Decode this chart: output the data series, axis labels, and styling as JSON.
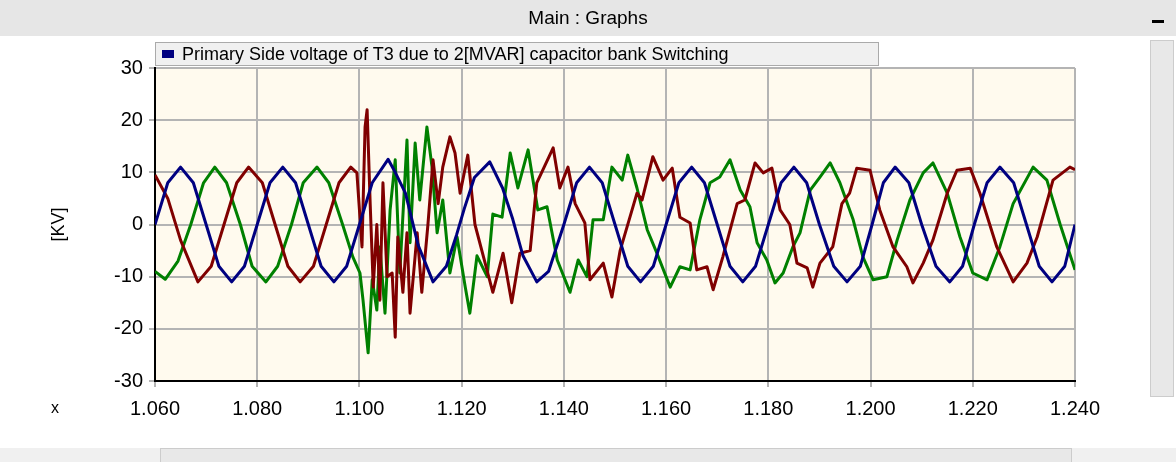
{
  "chart_data": {
    "type": "line",
    "title": "Main : Graphs",
    "xlabel": "x",
    "ylabel": "[KV]",
    "legend": "top",
    "grid": true,
    "xlim": [
      1.06,
      1.24
    ],
    "xticks": [
      {
        "value": 1.06,
        "label": "1.060"
      },
      {
        "value": 1.08,
        "label": "1.080"
      },
      {
        "value": 1.1,
        "label": "1.100"
      },
      {
        "value": 1.12,
        "label": "1.120"
      },
      {
        "value": 1.14,
        "label": "1.140"
      },
      {
        "value": 1.16,
        "label": "1.160"
      },
      {
        "value": 1.18,
        "label": "1.180"
      },
      {
        "value": 1.2,
        "label": "1.200"
      },
      {
        "value": 1.22,
        "label": "1.220"
      },
      {
        "value": 1.24,
        "label": "1.240"
      }
    ],
    "ylim": [
      -30,
      30
    ],
    "yticks": [
      -30,
      -20,
      -10,
      0,
      10,
      20,
      30
    ],
    "series": [
      {
        "name": "Primary Side voltage of T3 due to 2[MVAR] capacitor bank Switching",
        "color": "#000080",
        "x": [
          1.06,
          1.0625,
          1.065,
          1.0675,
          1.07,
          1.0725,
          1.075,
          1.0775,
          1.08,
          1.0825,
          1.085,
          1.0875,
          1.09,
          1.0925,
          1.095,
          1.0975,
          1.1,
          1.1025,
          1.1056,
          1.107,
          1.109,
          1.1115,
          1.1144,
          1.117,
          1.119,
          1.1205,
          1.1225,
          1.1255,
          1.128,
          1.13,
          1.132,
          1.1347,
          1.137,
          1.14,
          1.1425,
          1.145,
          1.1475,
          1.15,
          1.1525,
          1.155,
          1.1575,
          1.16,
          1.1625,
          1.165,
          1.1675,
          1.17,
          1.1725,
          1.175,
          1.1775,
          1.18,
          1.1825,
          1.185,
          1.1875,
          1.19,
          1.1928,
          1.1954,
          1.198,
          1.2003,
          1.2025,
          1.2048,
          1.2075,
          1.21,
          1.2128,
          1.2155,
          1.218,
          1.2203,
          1.2228,
          1.2253,
          1.228,
          1.2305,
          1.233,
          1.2355,
          1.238,
          1.24
        ],
        "values": [
          0,
          8,
          11,
          8,
          0,
          -8,
          -11,
          -8,
          0,
          8,
          11,
          8,
          0,
          -8,
          -11,
          -8,
          0,
          8,
          12.5,
          10,
          6,
          -4,
          -11,
          -8,
          -2,
          3,
          9,
          12,
          7,
          1,
          -6,
          -11,
          -9,
          0,
          8,
          11,
          8,
          0,
          -8,
          -11,
          -8,
          0,
          8,
          11,
          8,
          0,
          -8,
          -11,
          -8,
          0,
          8,
          11,
          8,
          0,
          -8,
          -11,
          -8,
          0,
          8,
          11,
          8,
          0,
          -8,
          -11,
          -8,
          0,
          8,
          11,
          8,
          0,
          -8,
          -11,
          -8,
          0
        ]
      },
      {
        "color": "#800000",
        "x": [
          1.06,
          1.0625,
          1.065,
          1.0684,
          1.071,
          1.0735,
          1.076,
          1.0783,
          1.081,
          1.0835,
          1.086,
          1.0884,
          1.091,
          1.0935,
          1.096,
          1.0983,
          1.0995,
          1.1005,
          1.1011,
          1.1015,
          1.1021,
          1.1027,
          1.1034,
          1.104,
          1.1046,
          1.1054,
          1.1064,
          1.107,
          1.1075,
          1.1085,
          1.1093,
          1.1099,
          1.1113,
          1.1122,
          1.1134,
          1.1144,
          1.1154,
          1.1163,
          1.1177,
          1.1187,
          1.1197,
          1.1212,
          1.1226,
          1.1261,
          1.1281,
          1.1298,
          1.1314,
          1.1334,
          1.1347,
          1.1379,
          1.1392,
          1.1408,
          1.1422,
          1.1441,
          1.1451,
          1.1477,
          1.1494,
          1.151,
          1.1543,
          1.1553,
          1.1574,
          1.1594,
          1.1612,
          1.1627,
          1.1647,
          1.166,
          1.168,
          1.1692,
          1.1711,
          1.1739,
          1.1754,
          1.1774,
          1.179,
          1.1807,
          1.1823,
          1.1842,
          1.1856,
          1.1876,
          1.1887,
          1.1901,
          1.1926,
          1.1944,
          1.1959,
          1.1973,
          1.1999,
          1.2018,
          1.2044,
          1.2071,
          1.2083,
          1.2103,
          1.2122,
          1.215,
          1.2169,
          1.2195,
          1.2214,
          1.2247,
          1.2279,
          1.2306,
          1.2326,
          1.2357,
          1.239,
          1.24
        ],
        "values": [
          9.5,
          5,
          -3,
          -11,
          -8,
          0,
          8,
          11,
          8,
          0,
          -8,
          -11,
          -8,
          0,
          8,
          11,
          9.9,
          -4.3,
          18.7,
          22,
          4,
          -12,
          0,
          -14.5,
          8,
          -10,
          -9.3,
          -21.6,
          -2.4,
          -13,
          -1.6,
          -17,
          -1.6,
          -13,
          0,
          12.4,
          4,
          11,
          16.8,
          13.7,
          6,
          13.3,
          0,
          -13,
          -5.5,
          -15,
          -5.5,
          -5,
          8,
          14.7,
          7,
          11,
          4,
          0.3,
          -10.6,
          -7.4,
          -13.9,
          -5,
          6,
          4.7,
          13,
          8.5,
          10.8,
          1.4,
          0.3,
          -8.7,
          -8.1,
          -12.5,
          -6.2,
          4,
          4.7,
          11.8,
          9.9,
          10.8,
          2.8,
          0,
          -7.4,
          -8.3,
          -12,
          -7.4,
          -4.3,
          4,
          6,
          10.8,
          10.4,
          2.8,
          -4.3,
          -8.1,
          -11.2,
          -7.4,
          -3,
          6,
          10.4,
          10.8,
          6,
          -4.3,
          -11,
          -7.4,
          -2.4,
          8.5,
          11,
          10.5
        ]
      },
      {
        "color": "#008000",
        "x": [
          1.06,
          1.062,
          1.0645,
          1.067,
          1.0695,
          1.0717,
          1.074,
          1.0767,
          1.079,
          1.0817,
          1.084,
          1.0867,
          1.089,
          1.0917,
          1.094,
          1.0967,
          1.0987,
          1.1001,
          1.1007,
          1.1017,
          1.1025,
          1.1034,
          1.104,
          1.105,
          1.106,
          1.107,
          1.1079,
          1.1093,
          1.1099,
          1.1109,
          1.1118,
          1.1132,
          1.1142,
          1.1152,
          1.1163,
          1.1177,
          1.1191,
          1.1207,
          1.1216,
          1.123,
          1.125,
          1.1261,
          1.1279,
          1.1295,
          1.131,
          1.133,
          1.1349,
          1.1367,
          1.1387,
          1.1412,
          1.1428,
          1.1445,
          1.1457,
          1.1477,
          1.1494,
          1.1514,
          1.1525,
          1.1543,
          1.1563,
          1.1582,
          1.1608,
          1.1627,
          1.1647,
          1.1666,
          1.1686,
          1.1705,
          1.1725,
          1.1745,
          1.1764,
          1.1778,
          1.1797,
          1.1813,
          1.1829,
          1.1848,
          1.1862,
          1.1882,
          1.1901,
          1.1921,
          1.194,
          1.1966,
          1.1985,
          1.2005,
          1.2032,
          1.2052,
          1.2077,
          1.2103,
          1.2122,
          1.215,
          1.2175,
          1.22,
          1.2228,
          1.2253,
          1.2279,
          1.2318,
          1.2345,
          1.2371,
          1.24
        ],
        "values": [
          -9,
          -10.5,
          -7,
          0,
          8,
          11,
          8,
          0,
          -8,
          -11,
          -8,
          0,
          8,
          11,
          8,
          0,
          -6.2,
          -9.3,
          -14.5,
          -24.6,
          -10.6,
          -16.4,
          -4.3,
          -17,
          2.8,
          12.4,
          -9.3,
          16.2,
          -3.5,
          15.6,
          4.7,
          18.7,
          11,
          -1.6,
          4.7,
          -9.3,
          -2.4,
          -12,
          -17,
          -6,
          -10,
          2,
          1.4,
          13.7,
          7,
          14.3,
          2.8,
          3.4,
          -6.8,
          -13,
          -6.8,
          -10,
          0.9,
          0.9,
          11,
          8.5,
          13.3,
          7,
          -1,
          -5.5,
          -12,
          -8.1,
          -8.7,
          0.9,
          8,
          9.1,
          12.4,
          6.6,
          3.4,
          -3.5,
          -6.8,
          -11.2,
          -9.3,
          -4.3,
          -1.6,
          6.6,
          9.1,
          11.8,
          8,
          0.9,
          -6.2,
          -10.6,
          -10,
          -3,
          4.7,
          9.9,
          11.8,
          6,
          -2.4,
          -9.3,
          -10.6,
          -4.3,
          4,
          11,
          8.5,
          0,
          -8.7
        ]
      }
    ]
  }
}
